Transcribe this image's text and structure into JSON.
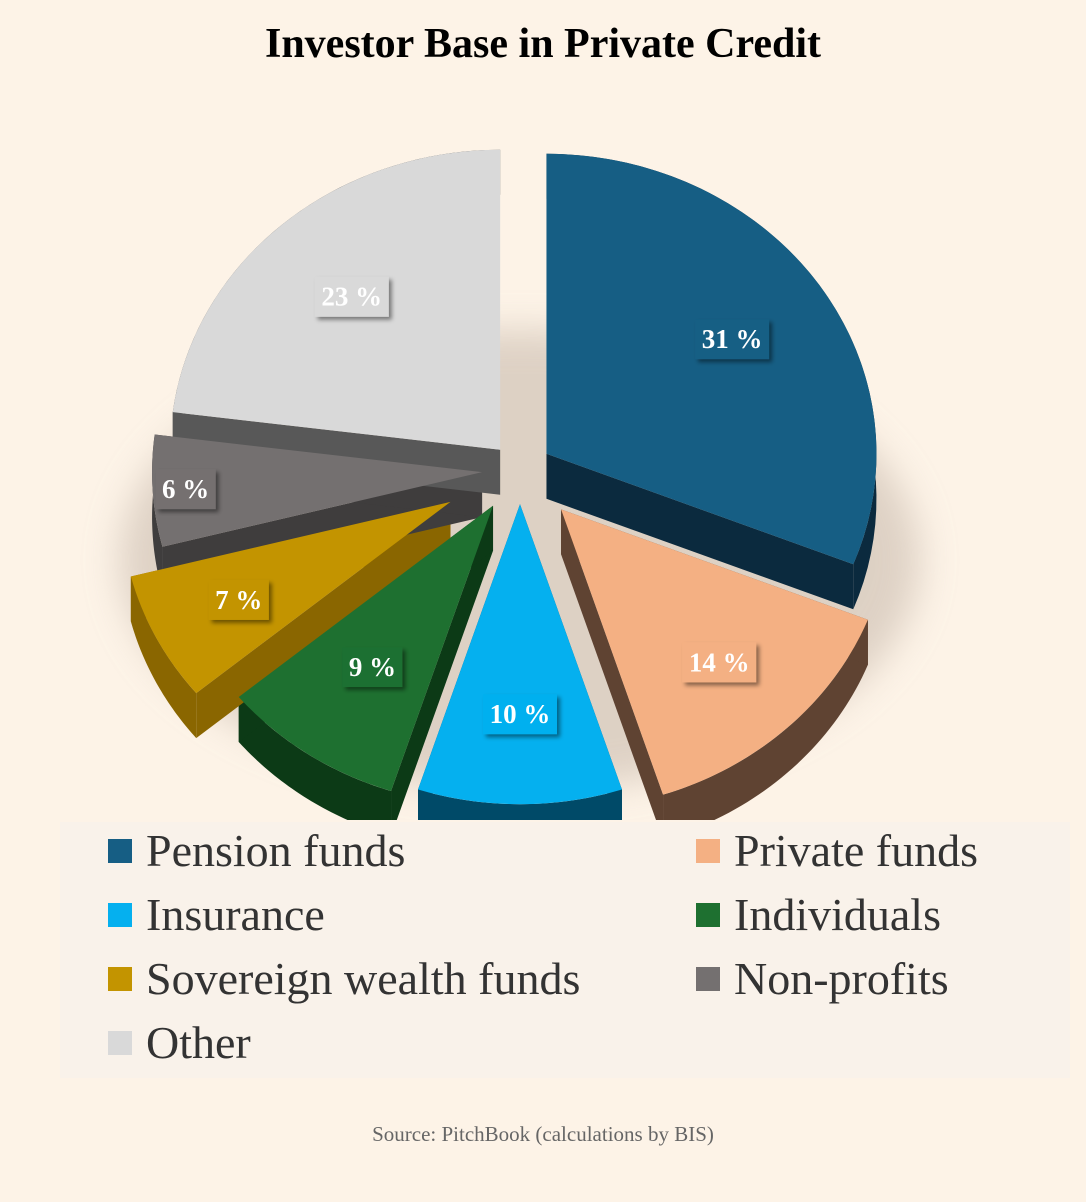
{
  "chart_data": {
    "type": "pie",
    "title": "Investor Base in Private Credit",
    "unit_suffix": " %",
    "series": [
      {
        "name": "Pension funds",
        "value": 31,
        "color": "#165e84",
        "side": "#0b2a3e"
      },
      {
        "name": "Private funds",
        "value": 14,
        "color": "#f4b083",
        "side": "#5f4332"
      },
      {
        "name": "Insurance",
        "value": 10,
        "color": "#05b0ef",
        "side": "#004a68"
      },
      {
        "name": "Individuals",
        "value": 9,
        "color": "#1e7030",
        "side": "#0c3a16"
      },
      {
        "name": "Sovereign wealth funds",
        "value": 7,
        "color": "#c39400",
        "side": "#8a6600"
      },
      {
        "name": "Non-profits",
        "value": 6,
        "color": "#747070",
        "side": "#3f3d3d"
      },
      {
        "name": "Other",
        "value": 23,
        "color": "#d9d9d9",
        "side": "#585858"
      }
    ],
    "labels": [
      "31 %",
      "14 %",
      "10 %",
      "9 %",
      "7 %",
      "6 %",
      "23 %"
    ],
    "legend_position": "bottom"
  },
  "source": "Source: PitchBook (calculations by BIS)"
}
